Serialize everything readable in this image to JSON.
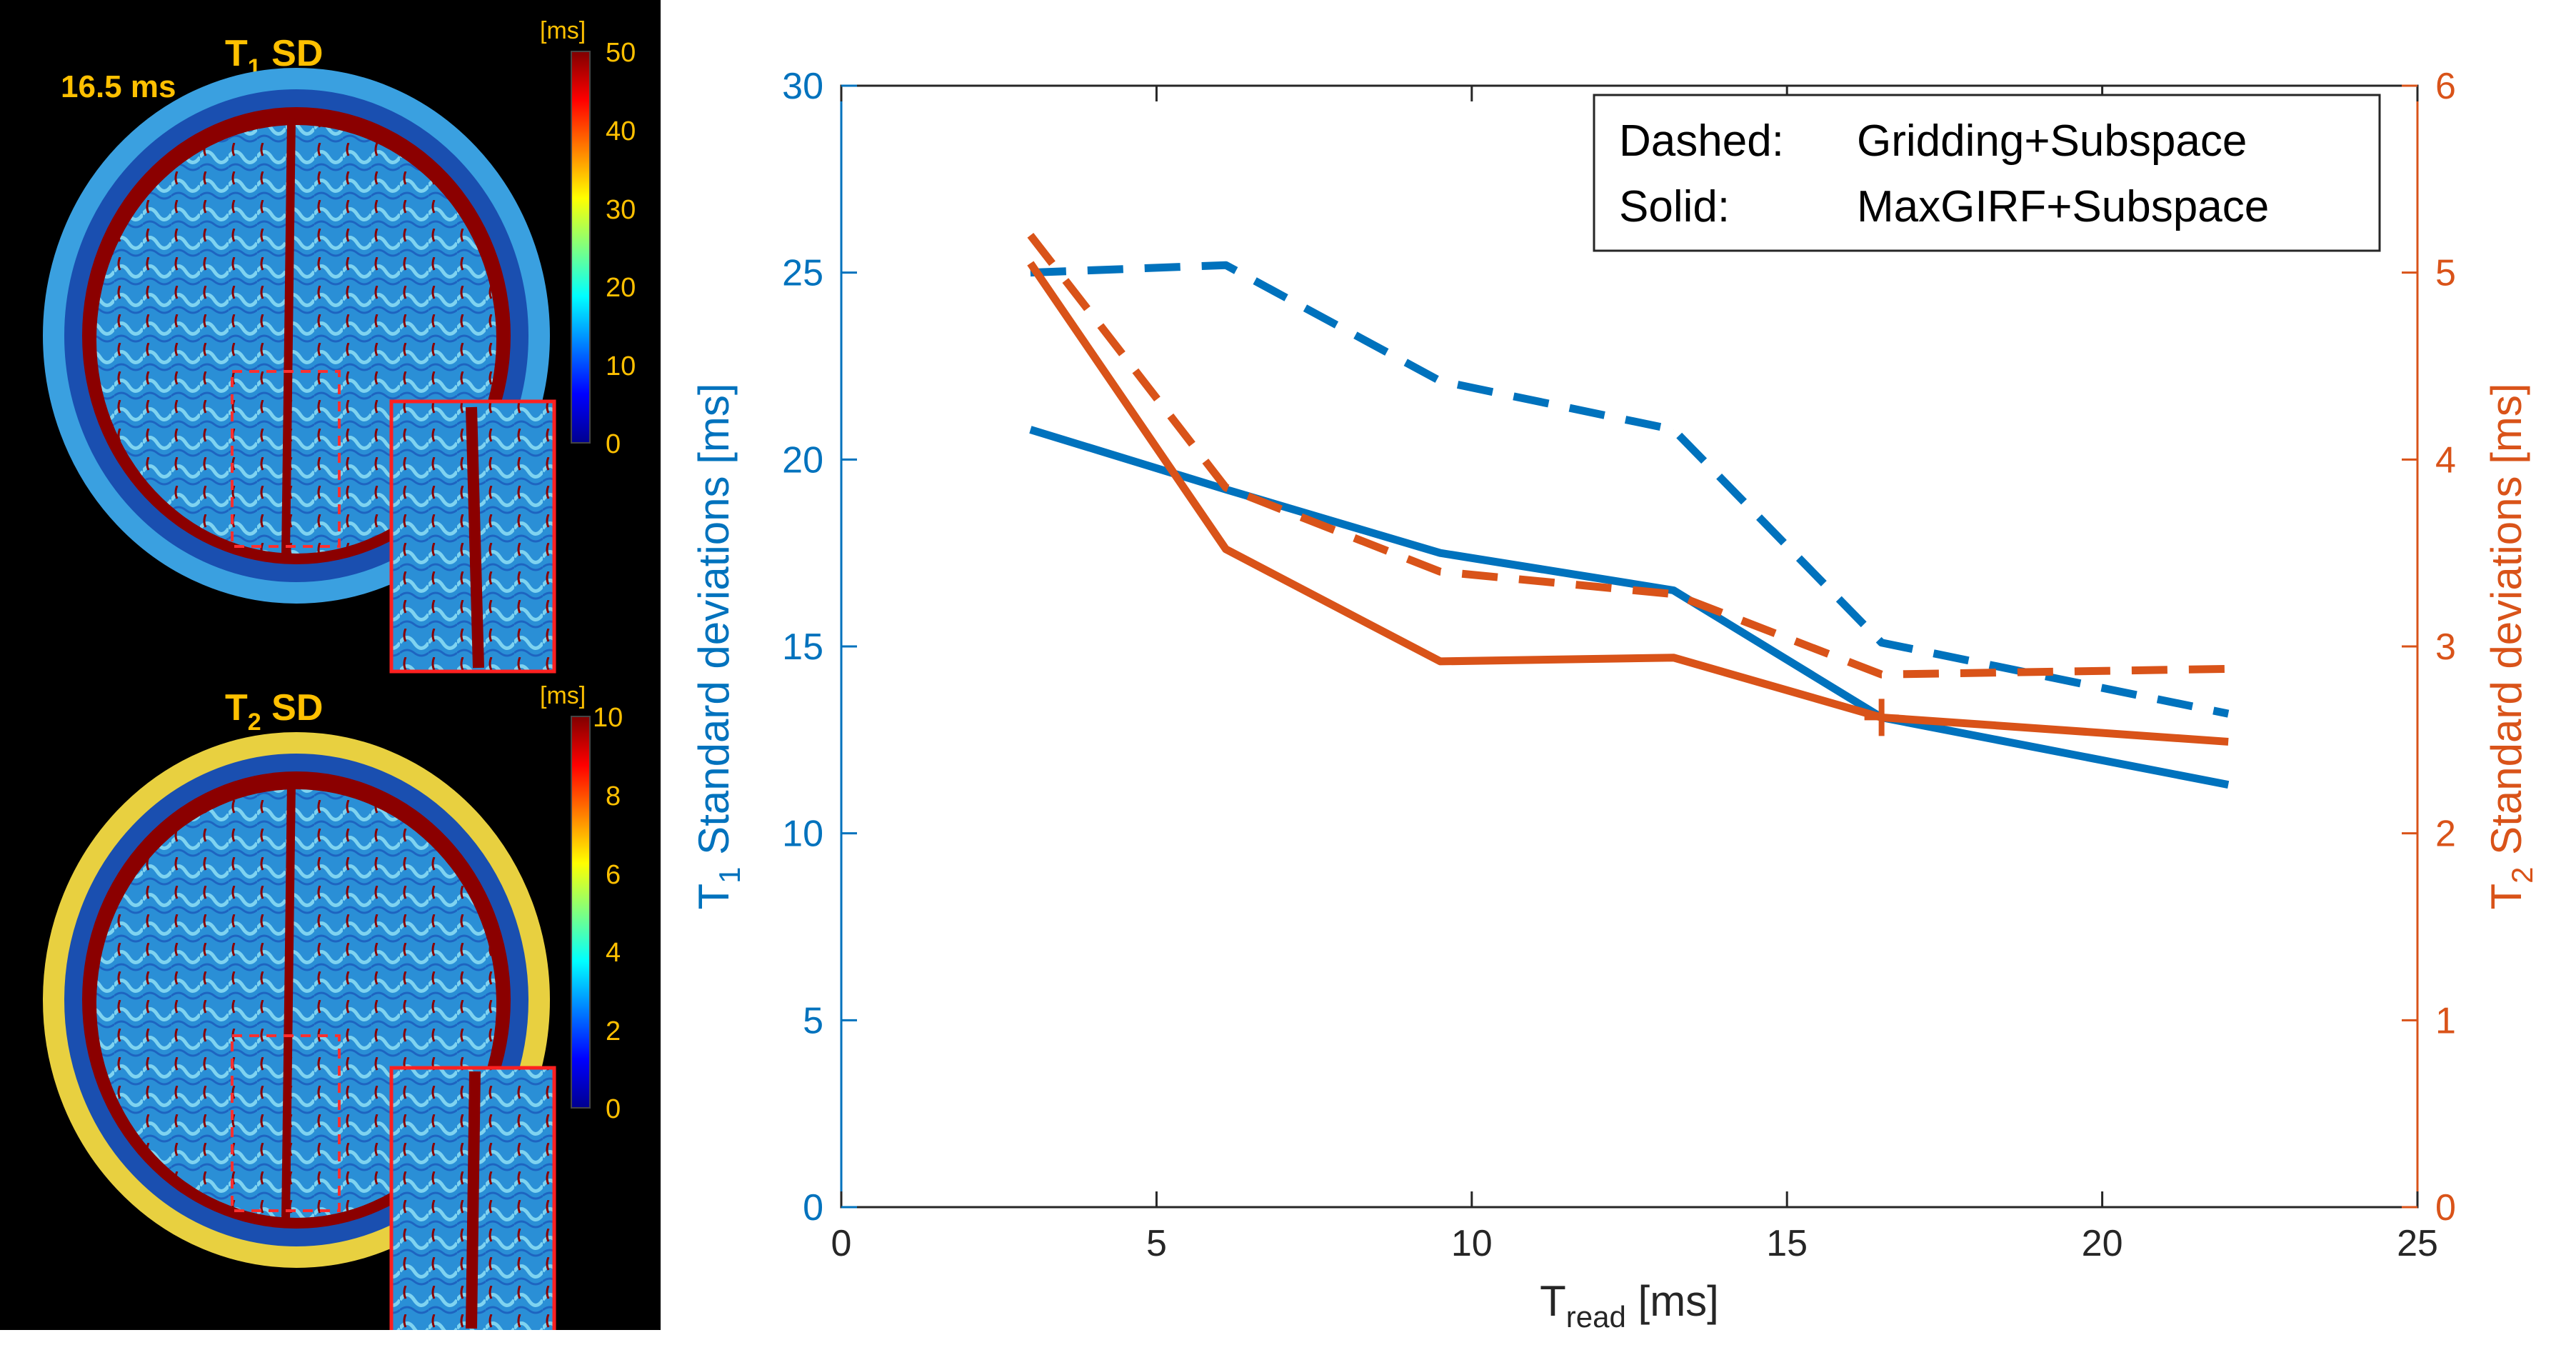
{
  "left_panel": {
    "time_label": "16.5 ms",
    "maps": [
      {
        "title_main": "T",
        "title_sub": "1",
        "title_rest": " SD",
        "unit": "[ms]",
        "ticks": [
          "0",
          "10",
          "20",
          "30",
          "40",
          "50"
        ]
      },
      {
        "title_main": "T",
        "title_sub": "2",
        "title_rest": " SD",
        "unit": "[ms]",
        "ticks": [
          "0",
          "2",
          "4",
          "6",
          "8",
          "10"
        ]
      }
    ]
  },
  "chart_data": {
    "type": "line",
    "x": [
      3,
      6.1,
      9.5,
      13.2,
      16.5,
      22
    ],
    "xlabel_main": "T",
    "xlabel_sub": "read",
    "xlabel_rest": " [ms]",
    "xlim": [
      0,
      25
    ],
    "x_ticks": [
      "0",
      "5",
      "10",
      "15",
      "20",
      "25"
    ],
    "y_left": {
      "label_main": "T",
      "label_sub": "1",
      "label_rest": " Standard deviations [ms]",
      "ylim": [
        0,
        30
      ],
      "ticks": [
        "0",
        "5",
        "10",
        "15",
        "20",
        "25",
        "30"
      ],
      "color": "#0072BD"
    },
    "y_right": {
      "label_main": "T",
      "label_sub": "2",
      "label_rest": " Standard deviations [ms]",
      "ylim": [
        0,
        6
      ],
      "ticks": [
        "0",
        "1",
        "2",
        "3",
        "4",
        "5",
        "6"
      ],
      "color": "#D95319"
    },
    "series": [
      {
        "axis": "left",
        "style": "dashed",
        "color": "#0072BD",
        "x": [
          3,
          6.1,
          9.5,
          13.2,
          16.5,
          22
        ],
        "values": [
          25.0,
          25.2,
          22.1,
          20.8,
          15.1,
          13.2
        ]
      },
      {
        "axis": "left",
        "style": "solid",
        "color": "#0072BD",
        "x": [
          3,
          6.1,
          9.5,
          13.2,
          16.5,
          22
        ],
        "values": [
          20.8,
          19.2,
          17.5,
          16.5,
          13.1,
          11.3
        ]
      },
      {
        "axis": "right",
        "style": "dashed",
        "color": "#D95319",
        "x": [
          3,
          6.1,
          9.5,
          13.2,
          16.5,
          22
        ],
        "values": [
          5.2,
          3.85,
          3.4,
          3.28,
          2.85,
          2.88
        ]
      },
      {
        "axis": "right",
        "style": "solid",
        "color": "#D95319",
        "x": [
          3,
          6.1,
          9.5,
          13.2,
          16.5,
          22
        ],
        "values": [
          5.05,
          3.52,
          2.92,
          2.94,
          2.62,
          2.49
        ]
      }
    ],
    "marker": {
      "x": 16.5,
      "left_value": 13.1,
      "symbol": "+"
    },
    "legend": {
      "position": "top-right",
      "rows": [
        {
          "key": "Dashed:",
          "value": "Gridding+Subspace"
        },
        {
          "key": "Solid:",
          "value": "MaxGIRF+Subspace"
        }
      ]
    },
    "grid": false
  }
}
